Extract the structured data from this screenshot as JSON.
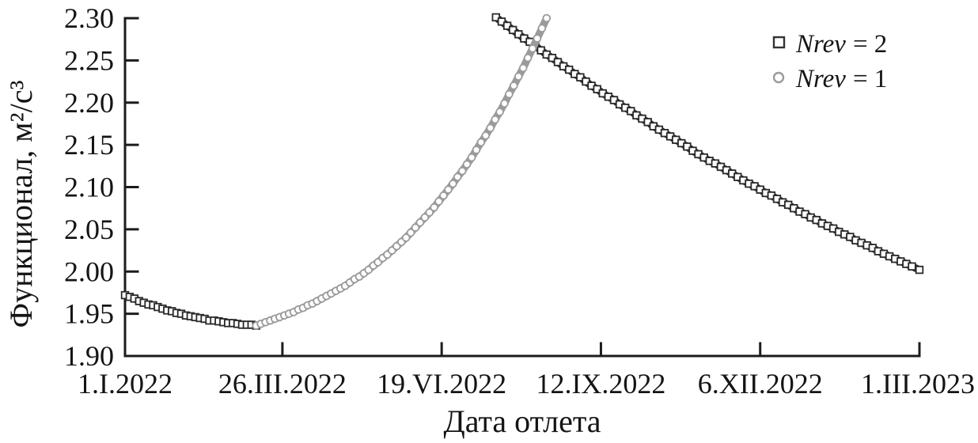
{
  "chart_data": {
    "type": "scatter",
    "xlabel": "Дата отлета",
    "ylabel": "Функционал, м²/с³",
    "grid": false,
    "legend_position": "top-right",
    "x_axis": {
      "tick_labels": [
        "1.I.2022",
        "26.III.2022",
        "19.VI.2022",
        "12.IX.2022",
        "6.XII.2022",
        "1.III.2023"
      ],
      "tick_days": [
        0,
        84,
        169,
        254,
        339,
        424
      ],
      "range_days": [
        0,
        424
      ]
    },
    "y_axis": {
      "tick_labels": [
        "1.90",
        "1.95",
        "2.00",
        "2.05",
        "2.10",
        "2.15",
        "2.20",
        "2.25",
        "2.30"
      ],
      "ticks": [
        1.9,
        1.95,
        2.0,
        2.05,
        2.1,
        2.15,
        2.2,
        2.25,
        2.3
      ],
      "range": [
        1.9,
        2.3
      ]
    },
    "legend": {
      "items": [
        {
          "id": "nrev2",
          "var": "Nrev",
          "rest": "= 2",
          "marker": "square",
          "color": "#2a2a2a"
        },
        {
          "id": "nrev1",
          "var": "Nrev",
          "rest": "= 1",
          "marker": "circle",
          "color": "#9b9b9b"
        }
      ]
    },
    "series": [
      {
        "id": "nrev2",
        "name": "Nrev = 2",
        "marker": "square",
        "color": "#2a2a2a",
        "segments": [
          [
            [
              0,
              1.972
            ],
            [
              2.5,
              1.97
            ],
            [
              5,
              1.968
            ],
            [
              7.5,
              1.965
            ],
            [
              10,
              1.963
            ],
            [
              12.5,
              1.961
            ],
            [
              15,
              1.96
            ],
            [
              17.5,
              1.958
            ],
            [
              20,
              1.956
            ],
            [
              22.5,
              1.954
            ],
            [
              25,
              1.953
            ],
            [
              27.5,
              1.951
            ],
            [
              30,
              1.95
            ],
            [
              32.5,
              1.948
            ],
            [
              35,
              1.947
            ],
            [
              37.5,
              1.946
            ],
            [
              40,
              1.945
            ],
            [
              42.5,
              1.944
            ],
            [
              45,
              1.942
            ],
            [
              47.5,
              1.942
            ],
            [
              50,
              1.941
            ],
            [
              52.5,
              1.94
            ],
            [
              55,
              1.939
            ],
            [
              57.5,
              1.939
            ],
            [
              60,
              1.938
            ],
            [
              62.5,
              1.937
            ],
            [
              65,
              1.937
            ],
            [
              67.5,
              1.937
            ],
            [
              70,
              1.936
            ]
          ],
          [
            [
              198,
              2.301
            ],
            [
              201,
              2.296
            ],
            [
              204,
              2.291
            ],
            [
              207,
              2.286
            ],
            [
              210,
              2.281
            ],
            [
              213,
              2.276
            ],
            [
              216,
              2.272
            ],
            [
              219,
              2.267
            ],
            [
              222,
              2.262
            ],
            [
              225,
              2.257
            ],
            [
              228,
              2.253
            ],
            [
              231,
              2.248
            ],
            [
              234,
              2.243
            ],
            [
              237,
              2.239
            ],
            [
              240,
              2.234
            ],
            [
              243,
              2.23
            ],
            [
              246,
              2.225
            ],
            [
              249,
              2.22
            ],
            [
              252,
              2.216
            ],
            [
              255,
              2.211
            ],
            [
              258,
              2.207
            ],
            [
              261,
              2.203
            ],
            [
              264,
              2.198
            ],
            [
              267,
              2.194
            ],
            [
              270,
              2.19
            ],
            [
              273,
              2.185
            ],
            [
              276,
              2.181
            ],
            [
              279,
              2.177
            ],
            [
              282,
              2.172
            ],
            [
              285,
              2.168
            ],
            [
              288,
              2.164
            ],
            [
              291,
              2.16
            ],
            [
              294,
              2.156
            ],
            [
              297,
              2.152
            ],
            [
              300,
              2.148
            ],
            [
              303,
              2.143
            ],
            [
              306,
              2.139
            ],
            [
              309,
              2.135
            ],
            [
              312,
              2.131
            ],
            [
              315,
              2.128
            ],
            [
              318,
              2.124
            ],
            [
              321,
              2.12
            ],
            [
              324,
              2.116
            ],
            [
              327,
              2.112
            ],
            [
              330,
              2.108
            ],
            [
              333,
              2.104
            ],
            [
              336,
              2.101
            ],
            [
              339,
              2.097
            ],
            [
              342,
              2.093
            ],
            [
              345,
              2.09
            ],
            [
              348,
              2.086
            ],
            [
              351,
              2.082
            ],
            [
              354,
              2.079
            ],
            [
              357,
              2.075
            ],
            [
              360,
              2.071
            ],
            [
              363,
              2.068
            ],
            [
              366,
              2.064
            ],
            [
              369,
              2.061
            ],
            [
              372,
              2.057
            ],
            [
              375,
              2.054
            ],
            [
              378,
              2.051
            ],
            [
              381,
              2.047
            ],
            [
              384,
              2.044
            ],
            [
              387,
              2.041
            ],
            [
              390,
              2.037
            ],
            [
              393,
              2.034
            ],
            [
              396,
              2.031
            ],
            [
              399,
              2.028
            ],
            [
              402,
              2.024
            ],
            [
              405,
              2.021
            ],
            [
              408,
              2.018
            ],
            [
              411,
              2.015
            ],
            [
              414,
              2.012
            ],
            [
              417,
              2.009
            ],
            [
              420,
              2.006
            ],
            [
              424,
              2.002
            ]
          ]
        ]
      },
      {
        "id": "nrev1",
        "name": "Nrev = 1",
        "marker": "circle",
        "color": "#9b9b9b",
        "segments": [
          [
            [
              70,
              1.936
            ],
            [
              72.5,
              1.938
            ],
            [
              75,
              1.94
            ],
            [
              77.5,
              1.942
            ],
            [
              80,
              1.944
            ],
            [
              82.5,
              1.946
            ],
            [
              85,
              1.948
            ],
            [
              87.5,
              1.95
            ],
            [
              90,
              1.952
            ],
            [
              92.5,
              1.955
            ],
            [
              95,
              1.957
            ],
            [
              97.5,
              1.96
            ],
            [
              100,
              1.962
            ],
            [
              102.5,
              1.965
            ],
            [
              105,
              1.968
            ],
            [
              107.5,
              1.971
            ],
            [
              110,
              1.974
            ],
            [
              112.5,
              1.977
            ],
            [
              115,
              1.98
            ],
            [
              117.5,
              1.983
            ],
            [
              120,
              1.987
            ],
            [
              122.5,
              1.991
            ],
            [
              125,
              1.994
            ],
            [
              127.5,
              1.998
            ],
            [
              130,
              2.002
            ],
            [
              132.5,
              2.007
            ],
            [
              135,
              2.011
            ],
            [
              137.5,
              2.016
            ],
            [
              140,
              2.02
            ],
            [
              142.5,
              2.025
            ],
            [
              145,
              2.03
            ],
            [
              147.5,
              2.035
            ],
            [
              150,
              2.04
            ],
            [
              152.5,
              2.046
            ],
            [
              155,
              2.052
            ],
            [
              157.5,
              2.058
            ],
            [
              160,
              2.064
            ],
            [
              162.5,
              2.07
            ],
            [
              165,
              2.076
            ],
            [
              167.5,
              2.083
            ],
            [
              170,
              2.09
            ],
            [
              172.5,
              2.097
            ],
            [
              175,
              2.104
            ],
            [
              177.5,
              2.112
            ],
            [
              180,
              2.119
            ],
            [
              182.5,
              2.127
            ],
            [
              185,
              2.135
            ],
            [
              187.5,
              2.144
            ],
            [
              190,
              2.153
            ],
            [
              192.5,
              2.161
            ],
            [
              195,
              2.17
            ],
            [
              197.5,
              2.18
            ],
            [
              200,
              2.189
            ],
            [
              202.5,
              2.199
            ],
            [
              205,
              2.21
            ],
            [
              207.5,
              2.22
            ],
            [
              210,
              2.231
            ],
            [
              212.5,
              2.241
            ],
            [
              215,
              2.253
            ],
            [
              217.5,
              2.264
            ],
            [
              220,
              2.276
            ],
            [
              222.5,
              2.288
            ],
            [
              225,
              2.3
            ]
          ]
        ]
      }
    ]
  }
}
